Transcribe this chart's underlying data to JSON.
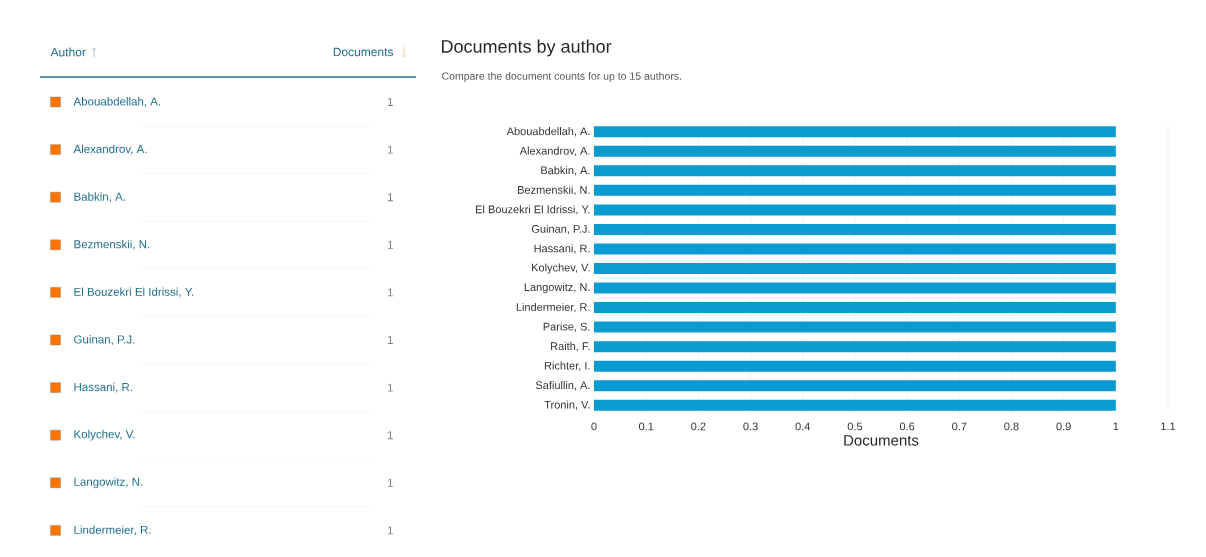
{
  "chart_data": [
    {
      "type": "other",
      "annotations": [
        "Author",
        "Documents",
        "Abouabdellah, A.",
        "1",
        "Alexandrov, A.",
        "1",
        "Babkin, A.",
        "1",
        "Bezmenskii, N.",
        "1",
        "El Bouzekri El Idrissi, Y.",
        "1",
        "Guinan, P.J.",
        "1",
        "Hassani, R.",
        "1",
        "Kolychev, V.",
        "1",
        "Langowitz, N.",
        "1",
        "Lindermeier, R.",
        "1"
      ]
    },
    {
      "type": "bar",
      "orientation": "horizontal",
      "title": "Documents by author",
      "subtitle": "Compare the document counts for up to 15 authors.",
      "xlabel": "Documents",
      "categories": [
        "Abouabdellah, A.",
        "Alexandrov, A.",
        "Babkin, A.",
        "Bezmenskii, N.",
        "El Bouzekri El Idrissi, Y.",
        "Guinan, P.J.",
        "Hassani, R.",
        "Kolychev, V.",
        "Langowitz, N.",
        "Lindermeier, R.",
        "Parise, S.",
        "Raith, F.",
        "Richter, I.",
        "Safiullin, A.",
        "Tronin, V."
      ],
      "values": [
        1,
        1,
        1,
        1,
        1,
        1,
        1,
        1,
        1,
        1,
        1,
        1,
        1,
        1,
        1
      ],
      "color": "#0a9bd0",
      "xlim": [
        0,
        1.1
      ],
      "xticks": [
        0,
        0.1,
        0.2,
        0.3,
        0.4,
        0.5,
        0.6,
        0.7,
        0.8,
        0.9,
        1,
        1.1
      ],
      "grid": "x"
    }
  ]
}
